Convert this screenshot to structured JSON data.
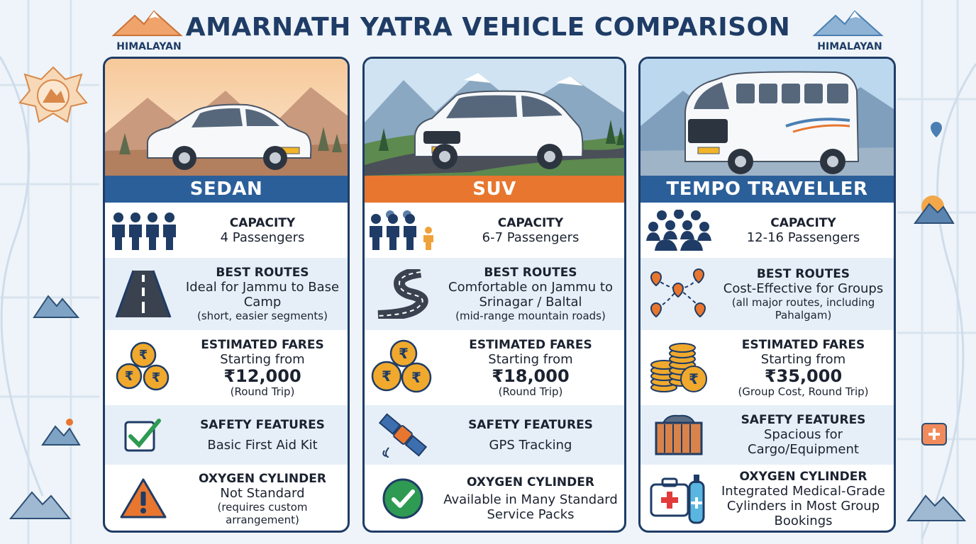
{
  "title": "AMARNATH YATRA VEHICLE COMPARISON",
  "brand_left": "HIMALAYAN",
  "brand_right": "HIMALAYAN",
  "colors": {
    "navy": "#1f3c66",
    "band_blue": "#2b5f9a",
    "band_orange": "#e8762f",
    "coin": "#f0a92d",
    "warning": "#e8762f",
    "check": "#2e9a52"
  },
  "vehicles": [
    {
      "name": "SEDAN",
      "capacity_label": "CAPACITY",
      "capacity_value": "4 Passengers",
      "routes_label": "BEST ROUTES",
      "routes_value": "Ideal for Jammu to Base Camp",
      "routes_note": "(short, easier segments)",
      "fares_label": "ESTIMATED FARES",
      "fares_from": "Starting from",
      "fares_value": "₹12,000",
      "fares_note": "(Round Trip)",
      "safety_label": "SAFETY FEATURES",
      "safety_value": "Basic First Aid Kit",
      "oxygen_label": "OXYGEN CYLINDER",
      "oxygen_value": "Not Standard",
      "oxygen_note": "(requires custom arrangement)",
      "icons": [
        "people-icon",
        "straight-road-icon",
        "rupee-coins-icon",
        "checkbox-icon",
        "warning-icon"
      ]
    },
    {
      "name": "SUV",
      "capacity_label": "CAPACITY",
      "capacity_value": "6-7 Passengers",
      "routes_label": "BEST ROUTES",
      "routes_value": "Comfortable on Jammu to Srinagar / Baltal",
      "routes_note": "(mid-range mountain roads)",
      "fares_label": "ESTIMATED FARES",
      "fares_from": "Starting from",
      "fares_value": "₹18,000",
      "fares_note": "(Round Trip)",
      "safety_label": "SAFETY FEATURES",
      "safety_value": "GPS Tracking",
      "oxygen_label": "OXYGEN CYLINDER",
      "oxygen_value": "Available in Many Standard Service Packs",
      "icons": [
        "family-icon",
        "winding-road-icon",
        "rupee-coins-icon",
        "satellite-icon",
        "check-circle-icon"
      ]
    },
    {
      "name": "TEMPO TRAVELLER",
      "capacity_label": "CAPACITY",
      "capacity_value": "12-16 Passengers",
      "routes_label": "BEST ROUTES",
      "routes_value": "Cost-Effective for Groups",
      "routes_note": "(all major routes, including Pahalgam)",
      "fares_label": "ESTIMATED FARES",
      "fares_from": "Starting from",
      "fares_value": "₹35,000",
      "fares_note": "(Group Cost, Round Trip)",
      "safety_label": "SAFETY FEATURES",
      "safety_value": "Spacious for Cargo/Equipment",
      "oxygen_label": "OXYGEN CYLINDER",
      "oxygen_value": "Integrated Medical-Grade Cylinders in Most Group Bookings",
      "icons": [
        "crowd-icon",
        "route-pins-icon",
        "coin-stack-icon",
        "cargo-crate-icon",
        "medical-kit-oxygen-icon"
      ]
    }
  ]
}
